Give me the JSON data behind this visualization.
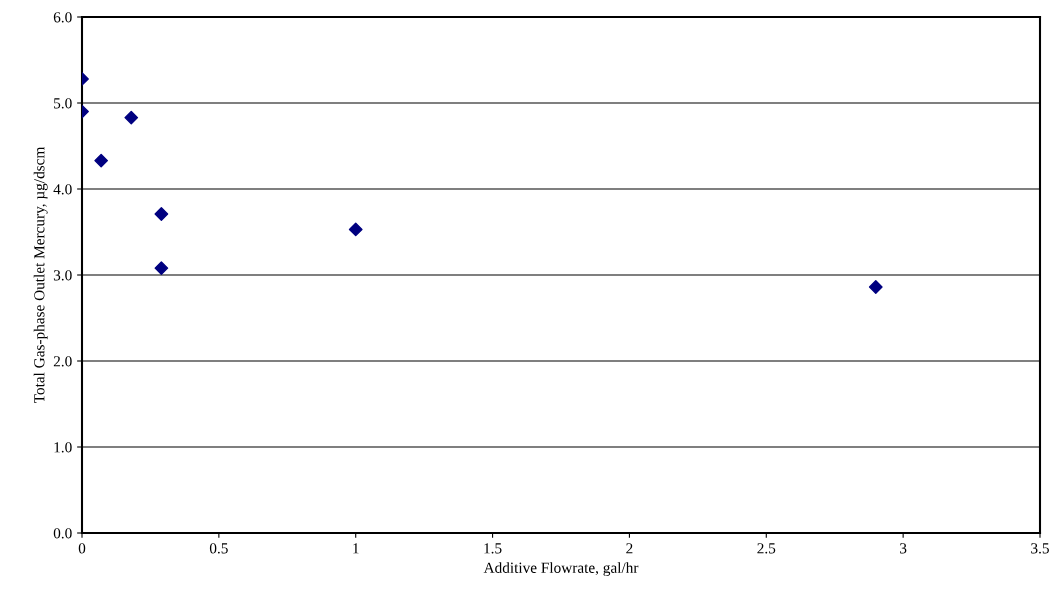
{
  "chart_data": {
    "type": "scatter",
    "xlabel": "Additive Flowrate, gal/hr",
    "ylabel": "Total Gas-phase Outlet Mercury, µg/dscm",
    "x": [
      0,
      0,
      0.18,
      0.07,
      0.29,
      0.29,
      1.0,
      2.9
    ],
    "series": [
      {
        "color": "#000080",
        "values": [
          5.28,
          4.9,
          4.83,
          4.33,
          3.71,
          3.08,
          3.53,
          2.86
        ]
      }
    ],
    "marker": "diamond",
    "grid": "y",
    "legend": false,
    "xlim": [
      0,
      3.5
    ],
    "xticks": [
      0,
      0.5,
      1,
      1.5,
      2,
      2.5,
      3,
      3.5
    ],
    "ylim": [
      0,
      6
    ],
    "yticks": [
      {
        "value": 0,
        "label": "0.0"
      },
      {
        "value": 1,
        "label": "1.0"
      },
      {
        "value": 2,
        "label": "2.0"
      },
      {
        "value": 3,
        "label": "3.0"
      },
      {
        "value": 4,
        "label": "4.0"
      },
      {
        "value": 5,
        "label": "5.0"
      },
      {
        "value": 6,
        "label": "6.0"
      }
    ]
  }
}
